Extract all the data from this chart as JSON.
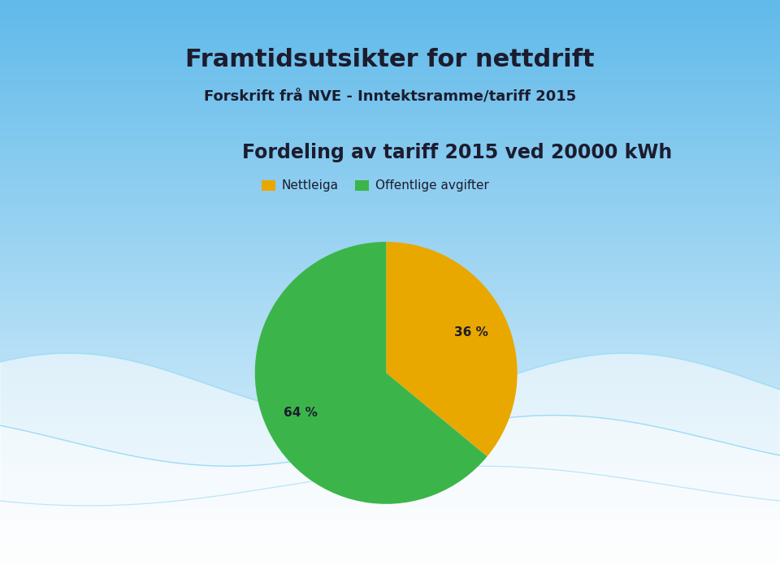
{
  "title_main": "Framtidsutsikter for nettdrift",
  "title_sub": "Forskrift frå NVE - Inntektsramme/tariff 2015",
  "chart_title": "Fordeling av tariff 2015 ved 20000 kWh",
  "slices": [
    36,
    64
  ],
  "labels": [
    "Nettleiga",
    "Offentlige avgifter"
  ],
  "colors": [
    "#E8A800",
    "#3BB54A"
  ],
  "pct_labels": [
    "36 %",
    "64 %"
  ],
  "bg_top": "#60BAEA",
  "bg_bottom": "#EAF6FD",
  "text_color": "#1C1C2E",
  "title_fontsize": 22,
  "subtitle_fontsize": 13,
  "chart_title_fontsize": 17,
  "legend_fontsize": 11,
  "pct_fontsize": 11
}
